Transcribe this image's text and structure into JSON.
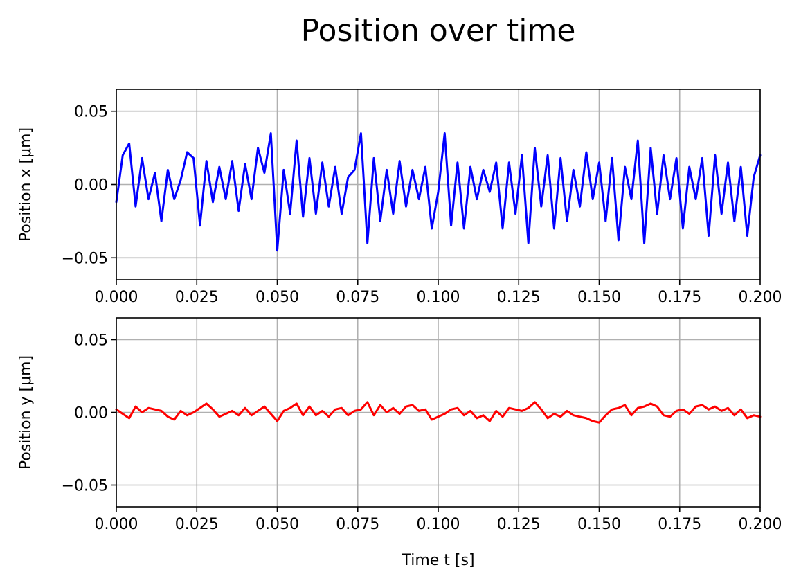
{
  "figure": {
    "title": "Position over time"
  },
  "chart_data": [
    {
      "type": "line",
      "panel": "top",
      "ylabel": "Position x [μm]",
      "xlabel": "",
      "xlim": [
        0.0,
        0.2
      ],
      "ylim": [
        -0.065,
        0.065
      ],
      "grid": true,
      "xticks": [
        0.0,
        0.025,
        0.05,
        0.075,
        0.1,
        0.125,
        0.15,
        0.175,
        0.2
      ],
      "xtick_labels": [
        "0.000",
        "0.025",
        "0.050",
        "0.075",
        "0.100",
        "0.125",
        "0.150",
        "0.175",
        "0.200"
      ],
      "yticks": [
        -0.05,
        0.0,
        0.05
      ],
      "ytick_labels": [
        "−0.05",
        "0.00",
        "0.05"
      ],
      "series": [
        {
          "color": "#0000ff",
          "x": [
            0.0,
            0.002,
            0.004,
            0.006,
            0.008,
            0.01,
            0.012,
            0.014,
            0.016,
            0.018,
            0.02,
            0.022,
            0.024,
            0.026,
            0.028,
            0.03,
            0.032,
            0.034,
            0.036,
            0.038,
            0.04,
            0.042,
            0.044,
            0.046,
            0.048,
            0.05,
            0.052,
            0.054,
            0.056,
            0.058,
            0.06,
            0.062,
            0.064,
            0.066,
            0.068,
            0.07,
            0.072,
            0.074,
            0.076,
            0.078,
            0.08,
            0.082,
            0.084,
            0.086,
            0.088,
            0.09,
            0.092,
            0.094,
            0.096,
            0.098,
            0.1,
            0.102,
            0.104,
            0.106,
            0.108,
            0.11,
            0.112,
            0.114,
            0.116,
            0.118,
            0.12,
            0.122,
            0.124,
            0.126,
            0.128,
            0.13,
            0.132,
            0.134,
            0.136,
            0.138,
            0.14,
            0.142,
            0.144,
            0.146,
            0.148,
            0.15,
            0.152,
            0.154,
            0.156,
            0.158,
            0.16,
            0.162,
            0.164,
            0.166,
            0.168,
            0.17,
            0.172,
            0.174,
            0.176,
            0.178,
            0.18,
            0.182,
            0.184,
            0.186,
            0.188,
            0.19,
            0.192,
            0.194,
            0.196,
            0.198,
            0.2
          ],
          "y": [
            -0.012,
            0.02,
            0.028,
            -0.015,
            0.018,
            -0.01,
            0.008,
            -0.025,
            0.01,
            -0.01,
            0.003,
            0.022,
            0.018,
            -0.028,
            0.016,
            -0.012,
            0.012,
            -0.01,
            0.016,
            -0.018,
            0.014,
            -0.01,
            0.025,
            0.008,
            0.035,
            -0.045,
            0.01,
            -0.02,
            0.03,
            -0.022,
            0.018,
            -0.02,
            0.015,
            -0.015,
            0.012,
            -0.02,
            0.005,
            0.01,
            0.035,
            -0.04,
            0.018,
            -0.025,
            0.01,
            -0.02,
            0.016,
            -0.015,
            0.01,
            -0.01,
            0.012,
            -0.03,
            -0.005,
            0.035,
            -0.028,
            0.015,
            -0.03,
            0.012,
            -0.01,
            0.01,
            -0.005,
            0.015,
            -0.03,
            0.015,
            -0.02,
            0.02,
            -0.04,
            0.025,
            -0.015,
            0.02,
            -0.03,
            0.018,
            -0.025,
            0.01,
            -0.015,
            0.022,
            -0.01,
            0.015,
            -0.025,
            0.018,
            -0.038,
            0.012,
            -0.01,
            0.03,
            -0.04,
            0.025,
            -0.02,
            0.02,
            -0.01,
            0.018,
            -0.03,
            0.012,
            -0.01,
            0.018,
            -0.035,
            0.02,
            -0.02,
            0.015,
            -0.025,
            0.012,
            -0.035,
            0.005,
            0.02
          ]
        }
      ]
    },
    {
      "type": "line",
      "panel": "bottom",
      "ylabel": "Position y [μm]",
      "xlabel": "Time t [s]",
      "xlim": [
        0.0,
        0.2
      ],
      "ylim": [
        -0.065,
        0.065
      ],
      "grid": true,
      "xticks": [
        0.0,
        0.025,
        0.05,
        0.075,
        0.1,
        0.125,
        0.15,
        0.175,
        0.2
      ],
      "xtick_labels": [
        "0.000",
        "0.025",
        "0.050",
        "0.075",
        "0.100",
        "0.125",
        "0.150",
        "0.175",
        "0.200"
      ],
      "yticks": [
        -0.05,
        0.0,
        0.05
      ],
      "ytick_labels": [
        "−0.05",
        "0.00",
        "0.05"
      ],
      "series": [
        {
          "color": "#ff0000",
          "x": [
            0.0,
            0.002,
            0.004,
            0.006,
            0.008,
            0.01,
            0.012,
            0.014,
            0.016,
            0.018,
            0.02,
            0.022,
            0.024,
            0.026,
            0.028,
            0.03,
            0.032,
            0.034,
            0.036,
            0.038,
            0.04,
            0.042,
            0.044,
            0.046,
            0.048,
            0.05,
            0.052,
            0.054,
            0.056,
            0.058,
            0.06,
            0.062,
            0.064,
            0.066,
            0.068,
            0.07,
            0.072,
            0.074,
            0.076,
            0.078,
            0.08,
            0.082,
            0.084,
            0.086,
            0.088,
            0.09,
            0.092,
            0.094,
            0.096,
            0.098,
            0.1,
            0.102,
            0.104,
            0.106,
            0.108,
            0.11,
            0.112,
            0.114,
            0.116,
            0.118,
            0.12,
            0.122,
            0.124,
            0.126,
            0.128,
            0.13,
            0.132,
            0.134,
            0.136,
            0.138,
            0.14,
            0.142,
            0.144,
            0.146,
            0.148,
            0.15,
            0.152,
            0.154,
            0.156,
            0.158,
            0.16,
            0.162,
            0.164,
            0.166,
            0.168,
            0.17,
            0.172,
            0.174,
            0.176,
            0.178,
            0.18,
            0.182,
            0.184,
            0.186,
            0.188,
            0.19,
            0.192,
            0.194,
            0.196,
            0.198,
            0.2
          ],
          "y": [
            0.002,
            -0.001,
            -0.004,
            0.004,
            0.0,
            0.003,
            0.002,
            0.001,
            -0.003,
            -0.005,
            0.001,
            -0.002,
            0.0,
            0.003,
            0.006,
            0.002,
            -0.003,
            -0.001,
            0.001,
            -0.002,
            0.003,
            -0.002,
            0.001,
            0.004,
            -0.001,
            -0.006,
            0.001,
            0.003,
            0.006,
            -0.002,
            0.004,
            -0.002,
            0.001,
            -0.003,
            0.002,
            0.003,
            -0.002,
            0.001,
            0.002,
            0.007,
            -0.002,
            0.005,
            0.0,
            0.003,
            -0.001,
            0.004,
            0.005,
            0.001,
            0.002,
            -0.005,
            -0.003,
            -0.001,
            0.002,
            0.003,
            -0.002,
            0.001,
            -0.004,
            -0.002,
            -0.006,
            0.001,
            -0.003,
            0.003,
            0.002,
            0.001,
            0.003,
            0.007,
            0.002,
            -0.004,
            -0.001,
            -0.003,
            0.001,
            -0.002,
            -0.003,
            -0.004,
            -0.006,
            -0.007,
            -0.002,
            0.002,
            0.003,
            0.005,
            -0.002,
            0.003,
            0.004,
            0.006,
            0.004,
            -0.002,
            -0.003,
            0.001,
            0.002,
            -0.001,
            0.004,
            0.005,
            0.002,
            0.004,
            0.001,
            0.003,
            -0.002,
            0.002,
            -0.004,
            -0.002,
            -0.003
          ]
        }
      ]
    }
  ]
}
